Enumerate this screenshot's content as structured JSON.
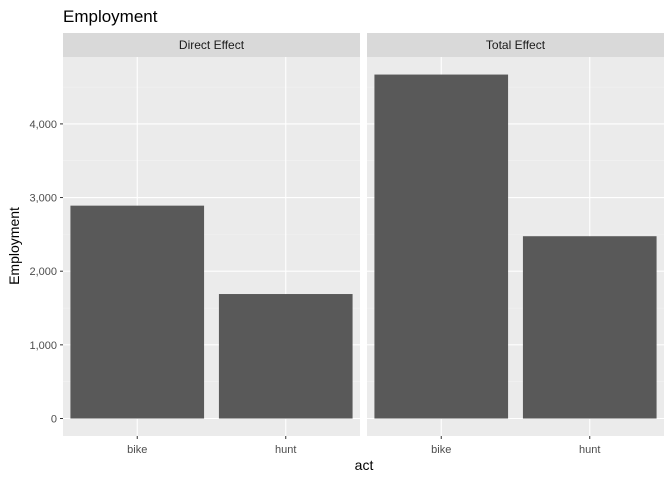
{
  "chart_data": {
    "type": "bar",
    "title": "Employment",
    "xlabel": "act",
    "ylabel": "Employment",
    "ylim": [
      0,
      4950
    ],
    "yticks": [
      0,
      1000,
      2000,
      3000,
      4000
    ],
    "ytick_labels": [
      "0",
      "1,000",
      "2,000",
      "3,000",
      "4,000"
    ],
    "categories": [
      "bike",
      "hunt"
    ],
    "grid": true,
    "panels": [
      {
        "label": "Direct Effect",
        "values": [
          2890,
          1690
        ]
      },
      {
        "label": "Total Effect",
        "values": [
          4670,
          2475
        ]
      }
    ]
  },
  "colors": {
    "panel_background": "#ebebeb",
    "strip_background": "#d9d9d9",
    "bar_fill": "#595959",
    "grid_major": "#ffffff",
    "grid_minor": "#f2f2f2",
    "tick_mark": "#333333"
  }
}
